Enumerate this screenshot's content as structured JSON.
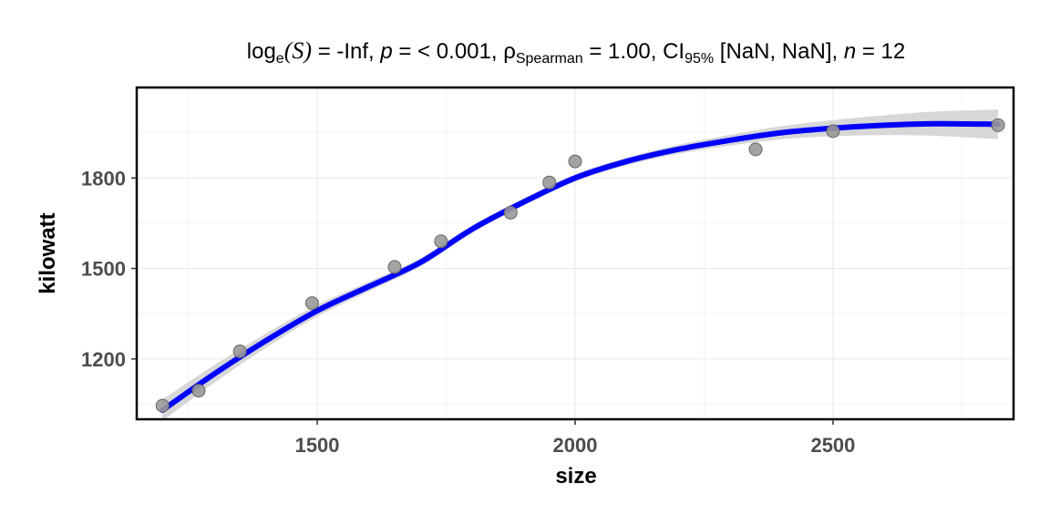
{
  "chart_data": {
    "type": "scatter",
    "title_parts": {
      "log_prefix": "log",
      "log_sub": "e",
      "stat_symbol": "(S)",
      "stat_value": " = -Inf, ",
      "p_symbol": "p",
      "p_value": " = < 0.001, ",
      "rho_symbol": "ρ",
      "rho_sub": "Spearman",
      "rho_value": " = 1.00, CI",
      "ci_sub": "95%",
      "ci_value": " [NaN, NaN], ",
      "n_symbol": "n",
      "n_value": " = 12"
    },
    "xlabel": "size",
    "ylabel": "kilowatt",
    "xlim": [
      1150,
      2850
    ],
    "ylim": [
      1000,
      2100
    ],
    "x_ticks": [
      1500,
      2000,
      2500
    ],
    "y_ticks": [
      1200,
      1500,
      1800
    ],
    "grid": true,
    "points": {
      "x": [
        1200,
        1270,
        1350,
        1490,
        1650,
        1740,
        1875,
        1950,
        2000,
        2350,
        2500,
        2820
      ],
      "y": [
        1045,
        1095,
        1225,
        1385,
        1505,
        1590,
        1685,
        1785,
        1855,
        1895,
        1955,
        1975
      ]
    },
    "smooth_fit": {
      "x": [
        1200,
        1300,
        1400,
        1500,
        1600,
        1700,
        1800,
        1900,
        2000,
        2100,
        2200,
        2300,
        2400,
        2500,
        2600,
        2700,
        2820
      ],
      "y": [
        1030,
        1150,
        1260,
        1360,
        1440,
        1520,
        1630,
        1720,
        1800,
        1855,
        1895,
        1925,
        1950,
        1965,
        1975,
        1980,
        1978
      ]
    },
    "colors": {
      "fit_line": "#0000ff",
      "ribbon": "#d3d3d3",
      "points": "#999999",
      "point_stroke": "#666666",
      "grid": "#ebebeb",
      "panel_border": "#000000"
    }
  }
}
